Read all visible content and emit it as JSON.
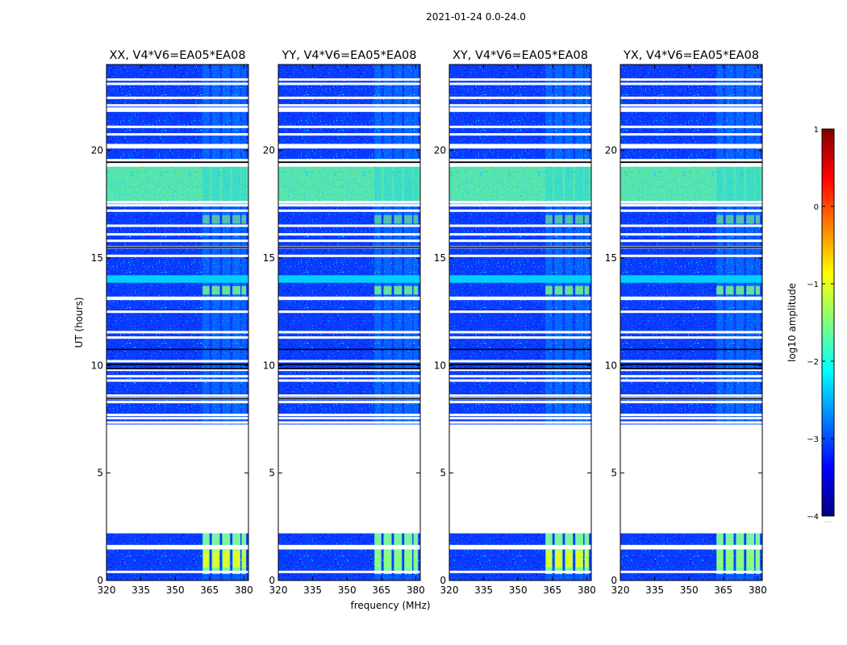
{
  "suptitle": "2021-01-24 0.0-24.0",
  "colors": {
    "jet": [
      "#00007f",
      "#0000ff",
      "#007fff",
      "#00ffff",
      "#7fff7f",
      "#ffff00",
      "#ff7f00",
      "#ff0000",
      "#7f0000"
    ],
    "masked": "#ffffff",
    "dark_line": "#000000"
  },
  "chart_data": {
    "type": "heatmap",
    "title": "2021-01-24 0.0-24.0",
    "xlabel": "frequency (MHz)",
    "ylabel": "UT (hours)",
    "xlim": [
      320,
      382
    ],
    "ylim": [
      0,
      24
    ],
    "xticks": [
      "320",
      "335",
      "350",
      "365",
      "380"
    ],
    "xtick_values": [
      320,
      335,
      350,
      365,
      380
    ],
    "yticks": [
      "0",
      "5",
      "10",
      "15",
      "20"
    ],
    "ytick_values": [
      0,
      5,
      10,
      15,
      20
    ],
    "panels": [
      {
        "title": "XX, V4*V6=EA05*EA08",
        "pol": "XX"
      },
      {
        "title": "YY, V4*V6=EA05*EA08",
        "pol": "YY"
      },
      {
        "title": "XY, V4*V6=EA05*EA08",
        "pol": "XY"
      },
      {
        "title": "YX, V4*V6=EA05*EA08",
        "pol": "YX"
      }
    ],
    "data_gap_hours": [
      2.25,
      7.2
    ],
    "flagged_hours": [
      0.4,
      1.5,
      1.6,
      2.25,
      7.2,
      7.35,
      7.55,
      7.7,
      8.3,
      8.45,
      8.6,
      9.3,
      9.5,
      9.8,
      10.2,
      11.3,
      11.55,
      12.5,
      13.1,
      13.15,
      14.05,
      15.1,
      15.5,
      15.8,
      16.1,
      16.5,
      17.2,
      17.45,
      17.6,
      19.3,
      19.4,
      19.55,
      20.15,
      20.25,
      20.75,
      21.1,
      21.85,
      21.95,
      22.1,
      22.45,
      23.1,
      23.3
    ],
    "dark_line_hours": [
      8.45,
      9.85,
      10.05,
      10.75,
      15.5,
      19.45
    ],
    "rfi_band_hours": [
      [
        17.5,
        19.3
      ]
    ],
    "rfi_channels_mhz": [
      [
        362,
        365
      ],
      [
        366,
        369.5
      ],
      [
        370.5,
        374
      ],
      [
        375,
        378.5
      ],
      [
        379,
        381
      ]
    ],
    "colorbar": {
      "label": "log10 amplitude",
      "range": [
        -4,
        1
      ],
      "ticks": [
        "1",
        "0",
        "−1",
        "−2",
        "−3",
        "−4"
      ],
      "tick_values": [
        1,
        0,
        -1,
        -2,
        -3,
        -4
      ],
      "extra": "....."
    }
  }
}
